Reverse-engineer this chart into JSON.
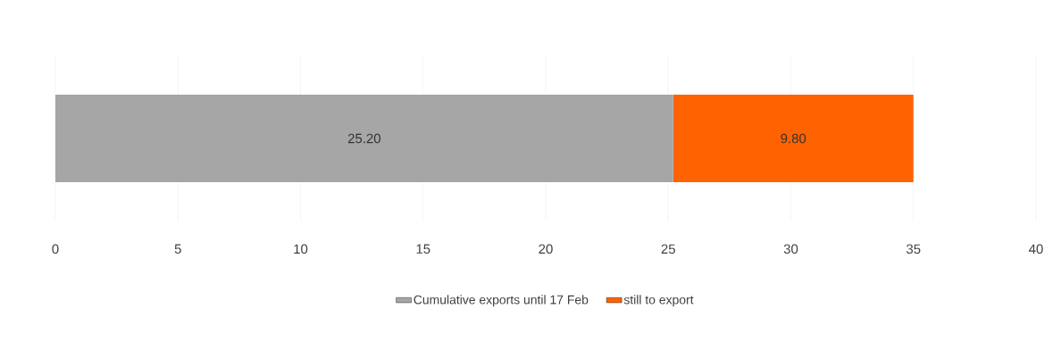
{
  "chart_data": {
    "type": "bar",
    "orientation": "horizontal",
    "stacked": true,
    "categories": [
      null
    ],
    "series": [
      {
        "name": "Cumulative exports until 17 Feb",
        "color": "#a6a6a6",
        "values": [
          25.2
        ],
        "value_labels": [
          "25.20"
        ]
      },
      {
        "name": "still to export",
        "color": "#ff6200",
        "values": [
          9.8
        ],
        "value_labels": [
          "9.80"
        ]
      }
    ],
    "xlim": [
      0,
      40
    ],
    "xticks": [
      0,
      5,
      10,
      15,
      20,
      25,
      30,
      35,
      40
    ],
    "grid": "x",
    "legend": "bottom",
    "tick_labels": "x"
  }
}
